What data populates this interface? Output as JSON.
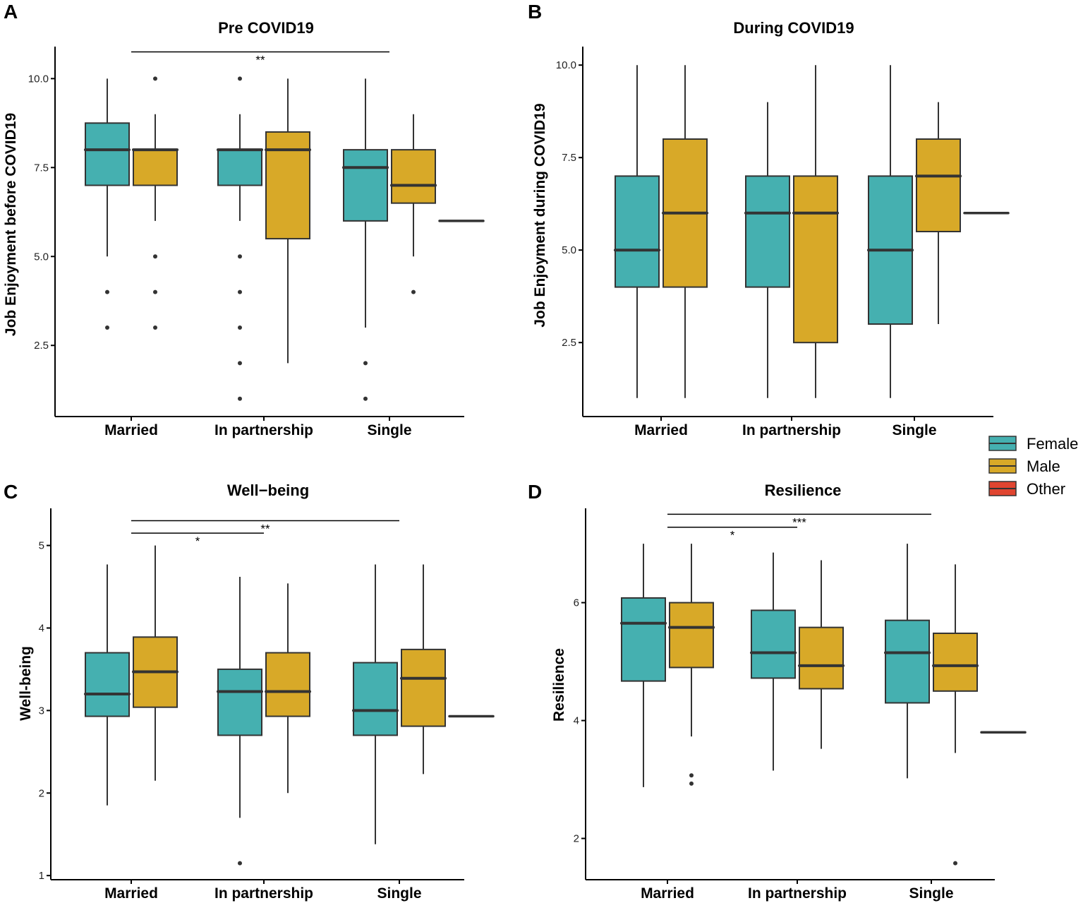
{
  "colors": {
    "female": "#45b0b0",
    "male": "#d8a928",
    "other": "#e04530",
    "stroke": "#333333"
  },
  "legend": {
    "items": [
      {
        "label": "Female",
        "color": "#45b0b0"
      },
      {
        "label": "Male",
        "color": "#d8a928"
      },
      {
        "label": "Other",
        "color": "#e04530"
      }
    ]
  },
  "chart_data": [
    {
      "panel": "A",
      "type": "boxplot",
      "title": "Pre COVID19",
      "xlabel": "",
      "ylabel": "Job Enjoyment before COVID19",
      "categories": [
        "Married",
        "In partnership",
        "Single"
      ],
      "yticks": [
        2.5,
        5.0,
        7.5,
        10.0
      ],
      "tick_labels": [
        "2.5",
        "5.0",
        "7.5",
        "10.0"
      ],
      "ylim": [
        0.5,
        10.9
      ],
      "boxes": [
        {
          "cat": 0,
          "group": "Female",
          "min": 5,
          "q1": 7,
          "median": 8,
          "q3": 8.75,
          "max": 10,
          "outliers": [
            4,
            3
          ]
        },
        {
          "cat": 0,
          "group": "Male",
          "min": 6,
          "q1": 7,
          "median": 8,
          "q3": 8,
          "max": 9,
          "outliers": [
            10,
            5,
            4,
            3
          ]
        },
        {
          "cat": 1,
          "group": "Female",
          "min": 6,
          "q1": 7,
          "median": 8,
          "q3": 8,
          "max": 9,
          "outliers": [
            10,
            5,
            4,
            3,
            2,
            1
          ]
        },
        {
          "cat": 1,
          "group": "Male",
          "min": 2,
          "q1": 5.5,
          "median": 8,
          "q3": 8.5,
          "max": 10,
          "outliers": []
        },
        {
          "cat": 2,
          "group": "Female",
          "min": 3,
          "q1": 6,
          "median": 7.5,
          "q3": 8,
          "max": 10,
          "outliers": [
            2,
            1
          ]
        },
        {
          "cat": 2,
          "group": "Male",
          "min": 5,
          "q1": 6.5,
          "median": 7,
          "q3": 8,
          "max": 9,
          "outliers": [
            4
          ]
        },
        {
          "cat": 2,
          "group": "Other",
          "min": 6,
          "q1": 6,
          "median": 6,
          "q3": 6,
          "max": 6,
          "outliers": []
        }
      ],
      "signif": [
        {
          "from": 0,
          "to": 2,
          "label": "**",
          "y": 10.75
        }
      ]
    },
    {
      "panel": "B",
      "type": "boxplot",
      "title": "During COVID19",
      "xlabel": "",
      "ylabel": "Job Enjoyment during COVID19",
      "categories": [
        "Married",
        "In partnership",
        "Single"
      ],
      "yticks": [
        2.5,
        5.0,
        7.5,
        10.0
      ],
      "tick_labels": [
        "2.5",
        "5.0",
        "7.5",
        "10.0"
      ],
      "ylim": [
        0.5,
        10.5
      ],
      "boxes": [
        {
          "cat": 0,
          "group": "Female",
          "min": 1,
          "q1": 4,
          "median": 5,
          "q3": 7,
          "max": 10,
          "outliers": []
        },
        {
          "cat": 0,
          "group": "Male",
          "min": 1,
          "q1": 4,
          "median": 6,
          "q3": 8,
          "max": 10,
          "outliers": []
        },
        {
          "cat": 1,
          "group": "Female",
          "min": 1,
          "q1": 4,
          "median": 6,
          "q3": 7,
          "max": 9,
          "outliers": []
        },
        {
          "cat": 1,
          "group": "Male",
          "min": 1,
          "q1": 2.5,
          "median": 6,
          "q3": 7,
          "max": 10,
          "outliers": []
        },
        {
          "cat": 2,
          "group": "Female",
          "min": 1,
          "q1": 3,
          "median": 5,
          "q3": 7,
          "max": 10,
          "outliers": []
        },
        {
          "cat": 2,
          "group": "Male",
          "min": 3,
          "q1": 5.5,
          "median": 7,
          "q3": 8,
          "max": 9,
          "outliers": []
        },
        {
          "cat": 2,
          "group": "Other",
          "min": 6,
          "q1": 6,
          "median": 6,
          "q3": 6,
          "max": 6,
          "outliers": []
        }
      ],
      "signif": []
    },
    {
      "panel": "C",
      "type": "boxplot",
      "title": "Well−being",
      "xlabel": "",
      "ylabel": "Well-being",
      "categories": [
        "Married",
        "In partnership",
        "Single"
      ],
      "yticks": [
        1,
        2,
        3,
        4,
        5
      ],
      "tick_labels": [
        "1",
        "2",
        "3",
        "4",
        "5"
      ],
      "ylim": [
        0.95,
        5.45
      ],
      "boxes": [
        {
          "cat": 0,
          "group": "Female",
          "min": 1.85,
          "q1": 2.93,
          "median": 3.2,
          "q3": 3.7,
          "max": 4.77,
          "outliers": []
        },
        {
          "cat": 0,
          "group": "Male",
          "min": 2.15,
          "q1": 3.04,
          "median": 3.47,
          "q3": 3.89,
          "max": 5.0,
          "outliers": []
        },
        {
          "cat": 1,
          "group": "Female",
          "min": 1.7,
          "q1": 2.7,
          "median": 3.23,
          "q3": 3.5,
          "max": 4.62,
          "outliers": [
            1.15
          ]
        },
        {
          "cat": 1,
          "group": "Male",
          "min": 2.0,
          "q1": 2.93,
          "median": 3.23,
          "q3": 3.7,
          "max": 4.54,
          "outliers": []
        },
        {
          "cat": 2,
          "group": "Female",
          "min": 1.38,
          "q1": 2.7,
          "median": 3.0,
          "q3": 3.58,
          "max": 4.77,
          "outliers": []
        },
        {
          "cat": 2,
          "group": "Male",
          "min": 2.23,
          "q1": 2.81,
          "median": 3.39,
          "q3": 3.74,
          "max": 4.77,
          "outliers": []
        },
        {
          "cat": 2,
          "group": "Other",
          "min": 2.93,
          "q1": 2.93,
          "median": 2.93,
          "q3": 2.93,
          "max": 2.93,
          "outliers": []
        }
      ],
      "signif": [
        {
          "from": 0,
          "to": 2,
          "label": "**",
          "y": 5.3
        },
        {
          "from": 0,
          "to": 1,
          "label": "*",
          "y": 5.15
        }
      ]
    },
    {
      "panel": "D",
      "type": "boxplot",
      "title": "Resilience",
      "xlabel": "",
      "ylabel": "Resilience",
      "categories": [
        "Married",
        "In partnership",
        "Single"
      ],
      "yticks": [
        2,
        4,
        6
      ],
      "tick_labels": [
        "2",
        "4",
        "6"
      ],
      "ylim": [
        1.3,
        7.6
      ],
      "boxes": [
        {
          "cat": 0,
          "group": "Female",
          "min": 2.87,
          "q1": 4.67,
          "median": 5.65,
          "q3": 6.08,
          "max": 7.0,
          "outliers": []
        },
        {
          "cat": 0,
          "group": "Male",
          "min": 3.73,
          "q1": 4.9,
          "median": 5.58,
          "q3": 6.0,
          "max": 7.0,
          "outliers": [
            3.07,
            2.93
          ]
        },
        {
          "cat": 1,
          "group": "Female",
          "min": 3.15,
          "q1": 4.72,
          "median": 5.15,
          "q3": 5.87,
          "max": 6.85,
          "outliers": []
        },
        {
          "cat": 1,
          "group": "Male",
          "min": 3.52,
          "q1": 4.54,
          "median": 4.93,
          "q3": 5.58,
          "max": 6.72,
          "outliers": []
        },
        {
          "cat": 2,
          "group": "Female",
          "min": 3.02,
          "q1": 4.3,
          "median": 5.15,
          "q3": 5.7,
          "max": 7.0,
          "outliers": []
        },
        {
          "cat": 2,
          "group": "Male",
          "min": 3.45,
          "q1": 4.5,
          "median": 4.93,
          "q3": 5.48,
          "max": 6.65,
          "outliers": [
            1.58
          ]
        },
        {
          "cat": 2,
          "group": "Other",
          "min": 3.8,
          "q1": 3.8,
          "median": 3.8,
          "q3": 3.8,
          "max": 3.8,
          "outliers": []
        }
      ],
      "signif": [
        {
          "from": 0,
          "to": 2,
          "label": "***",
          "y": 7.5
        },
        {
          "from": 0,
          "to": 1,
          "label": "*",
          "y": 7.28
        }
      ]
    }
  ]
}
